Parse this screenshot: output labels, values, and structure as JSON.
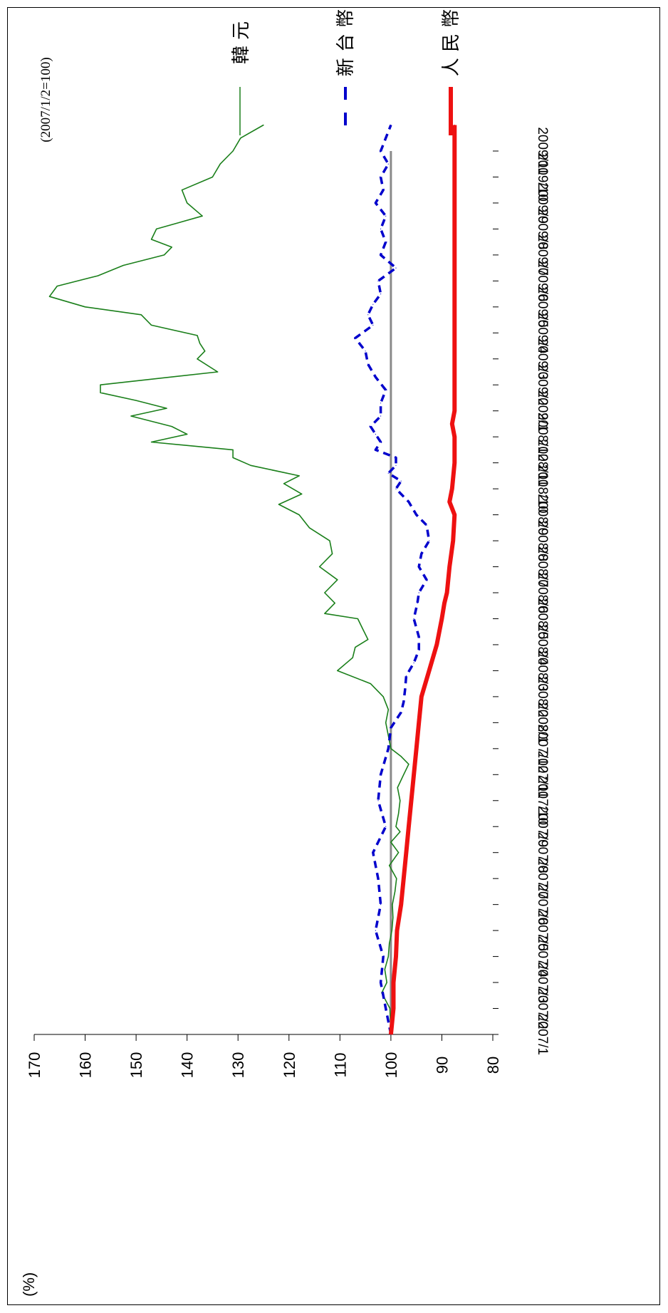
{
  "chart_data": {
    "type": "line",
    "orientation": "rotated-90-clockwise",
    "title": "",
    "note": "(2007/1/2=100)",
    "ylabel": "(%)",
    "xlabel": "",
    "ylim": [
      80,
      170
    ],
    "yticks": [
      "80",
      "90",
      "100",
      "110",
      "120",
      "130",
      "140",
      "150",
      "160",
      "170"
    ],
    "xticks": [
      "2007/1",
      "2007/2",
      "2007/3",
      "2007/4",
      "2007/5",
      "2007/6",
      "2007/7",
      "2007/8",
      "2007/9",
      "2007/10",
      "2007/11",
      "2007/12",
      "2008/1",
      "2008/2",
      "2008/3",
      "2008/4",
      "2008/5",
      "2008/6",
      "2008/7",
      "2008/8",
      "2008/9",
      "2008/10",
      "2008/11",
      "2008/12",
      "2009/1",
      "2009/2",
      "2009/3",
      "2009/4",
      "2009/5",
      "2009/6",
      "2009/7",
      "2009/8",
      "2009/9",
      "2009/10",
      "2009/11"
    ],
    "baseline": 100,
    "legend_position": "top-right (rotated)",
    "legend": {
      "krw": "韓 元",
      "twd": "新 台 幣",
      "cny": "人 民 幣"
    },
    "series": [
      {
        "name": "韓 元",
        "key": "krw",
        "color": "#1a7f1a",
        "style": "solid-thin",
        "x": [
          0,
          1,
          1.6,
          2,
          2.5,
          3,
          3.5,
          4,
          4.5,
          5,
          5.5,
          6,
          6.5,
          7,
          7.4,
          7.8,
          8,
          8.5,
          9,
          9.5,
          10,
          10.4,
          10.7,
          11,
          11.5,
          12,
          12.5,
          13,
          13.5,
          14,
          14.5,
          14.9,
          15.2,
          15.6,
          16,
          16.2,
          16.6,
          17,
          17.5,
          18,
          18.5,
          19,
          19.5,
          20,
          20.4,
          20.8,
          21.2,
          21.5,
          21.9,
          22.2,
          22.5,
          22.8,
          23.1,
          23.4,
          23.8,
          24.1,
          24.4,
          24.7,
          25,
          25.5,
          26,
          26.3,
          26.6,
          26.9,
          27.3,
          27.7,
          28,
          28.4,
          28.8,
          29.2,
          29.6,
          30,
          30.3,
          30.6,
          31,
          31.5,
          32,
          32.5,
          33,
          33.5,
          34,
          34.5,
          35
        ],
        "values": [
          100,
          100.2,
          101.8,
          100.8,
          101.2,
          100.5,
          100.3,
          99.8,
          99.6,
          99.7,
          99.2,
          98.9,
          100.3,
          98.5,
          100,
          98.2,
          99,
          98.5,
          98.2,
          98.7,
          97.5,
          96.5,
          98,
          100,
          100.5,
          101,
          100.5,
          101.5,
          104,
          110.5,
          107.5,
          107,
          104.5,
          105.5,
          106.5,
          113,
          111,
          113,
          110.5,
          114,
          111.5,
          112,
          116,
          118,
          122,
          117.5,
          121,
          118,
          127.5,
          131,
          131,
          147,
          140,
          143,
          151,
          144,
          150,
          157,
          157,
          134,
          138,
          136.5,
          137.5,
          138,
          147,
          149,
          160,
          167,
          165.5,
          157.5,
          152.5,
          144.5,
          143,
          147,
          146,
          137,
          140,
          141,
          135,
          133.5,
          131,
          129.5,
          125
        ]
      },
      {
        "name": "新 台 幣",
        "key": "twd",
        "color": "#0000cc",
        "style": "dashed",
        "x": [
          0,
          1,
          2,
          3,
          4,
          5,
          6,
          7,
          8,
          9,
          10,
          11,
          11.8,
          12.4,
          12.8,
          13.3,
          13.8,
          14.3,
          14.8,
          15.3,
          16,
          16.6,
          17,
          17.5,
          18,
          18.5,
          19,
          19.6,
          20,
          20.5,
          21,
          21.3,
          21.6,
          21.9,
          22.2,
          22.5,
          22.8,
          23.1,
          23.4,
          23.8,
          24.3,
          24.8,
          25.3,
          25.8,
          26.3,
          26.8,
          27.3,
          27.7,
          28.1,
          28.5,
          29,
          29.5,
          30,
          30.5,
          31,
          31.5,
          32,
          32.5,
          33,
          33.5,
          34,
          34.5,
          35
        ],
        "values": [
          100,
          101,
          102,
          101.5,
          103,
          102,
          102.5,
          103.5,
          101,
          102.5,
          102,
          100.5,
          100,
          98,
          97.5,
          97.2,
          97,
          95.5,
          94.5,
          94.5,
          95.5,
          94.8,
          94.5,
          93,
          94.5,
          94,
          92.5,
          93,
          95,
          96.5,
          99,
          98,
          100.5,
          99,
          99,
          103,
          102,
          103,
          104,
          102,
          102,
          101,
          103,
          104.5,
          105,
          107,
          103.5,
          104.5,
          103.5,
          102,
          102.5,
          99,
          102,
          101,
          102,
          101,
          103,
          101.5,
          102,
          100.5,
          102,
          101,
          100
        ]
      },
      {
        "name": "人 民 幣",
        "key": "cny",
        "color": "#ee1111",
        "style": "solid-thick",
        "x": [
          0,
          1,
          2,
          3,
          4,
          5,
          6,
          7,
          8,
          9,
          10,
          11,
          12,
          13,
          14,
          15,
          16,
          16.6,
          17,
          18,
          19,
          20,
          20.5,
          21,
          22,
          23,
          23.5,
          24,
          25,
          26,
          27,
          28,
          29,
          30,
          31,
          32,
          33,
          34,
          35
        ],
        "values": [
          100,
          99.5,
          99.5,
          99,
          98.8,
          98,
          97.5,
          97,
          96.5,
          96,
          95.5,
          95,
          94.5,
          94,
          92.5,
          91,
          90,
          89.5,
          89,
          88.5,
          87.8,
          87.5,
          88.5,
          88,
          87.5,
          87.5,
          88,
          87.5,
          87.5,
          87.5,
          87.5,
          87.5,
          87.5,
          87.5,
          87.5,
          87.5,
          87.5,
          87.5,
          87.5
        ]
      }
    ]
  }
}
